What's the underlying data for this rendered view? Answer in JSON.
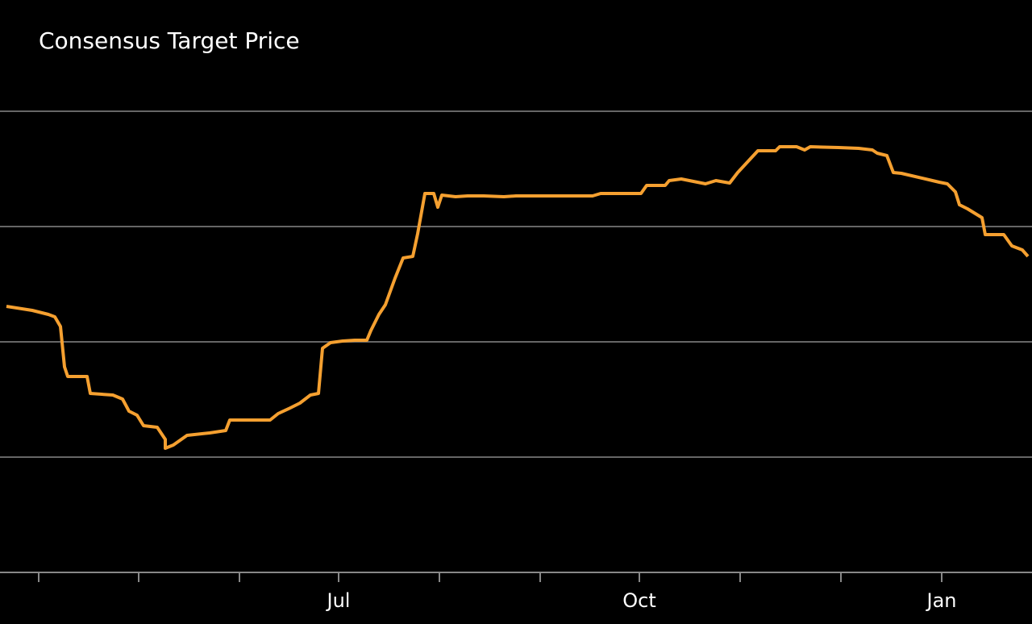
{
  "chart_data": {
    "type": "line",
    "title": "Consensus Target Price",
    "x": [
      -40,
      -8,
      12,
      20,
      27,
      32,
      36,
      60,
      64,
      92,
      104,
      112,
      122,
      130,
      147,
      157,
      157,
      167,
      184,
      212,
      232,
      237,
      287,
      297,
      312,
      324,
      337,
      347,
      352,
      362,
      377,
      392,
      407,
      412,
      422,
      430,
      442,
      452,
      464,
      470,
      479,
      490,
      495,
      500,
      517,
      532,
      552,
      577,
      592,
      687,
      697,
      747,
      754,
      777,
      782,
      797,
      827,
      840,
      857,
      867,
      892,
      914,
      919,
      940,
      950,
      957,
      992,
      1017,
      1034,
      1040,
      1052,
      1060,
      1070,
      1117,
      1127,
      1137,
      1142,
      1152,
      1170,
      1174,
      1197,
      1207,
      1220,
      1227
    ],
    "series": [
      {
        "name": "Consensus Target Price",
        "color": "#f5a030",
        "values": [
          330,
          325,
          320,
          317,
          305,
          255,
          243,
          243,
          222,
          220,
          215,
          200,
          195,
          182,
          180,
          165,
          154,
          158,
          170,
          173,
          176,
          189,
          189,
          197,
          204,
          210,
          220,
          222,
          278,
          285,
          287,
          288,
          288,
          300,
          320,
          332,
          365,
          390,
          392,
          420,
          470,
          470,
          453,
          468,
          466,
          467,
          467,
          466,
          467,
          467,
          470,
          470,
          480,
          480,
          486,
          488,
          482,
          486,
          483,
          496,
          523,
          523,
          528,
          528,
          524,
          528,
          527,
          526,
          524,
          520,
          517,
          496,
          495,
          484,
          482,
          472,
          456,
          451,
          440,
          419,
          419,
          405,
          400,
          392
        ]
      }
    ],
    "xlim": [
      -40,
      1232
    ],
    "ylim": [
      0,
      710
    ],
    "xticks": [
      {
        "value": 0,
        "label": null
      },
      {
        "value": 124,
        "label": null
      },
      {
        "value": 249,
        "label": null
      },
      {
        "value": 372,
        "label": "Jul"
      },
      {
        "value": 497,
        "label": null
      },
      {
        "value": 622,
        "label": null
      },
      {
        "value": 745,
        "label": "Oct"
      },
      {
        "value": 870,
        "label": null
      },
      {
        "value": 995,
        "label": null
      },
      {
        "value": 1120,
        "label": "Jan"
      }
    ],
    "yticks": [
      143,
      286,
      429,
      572
    ],
    "grid": true
  }
}
